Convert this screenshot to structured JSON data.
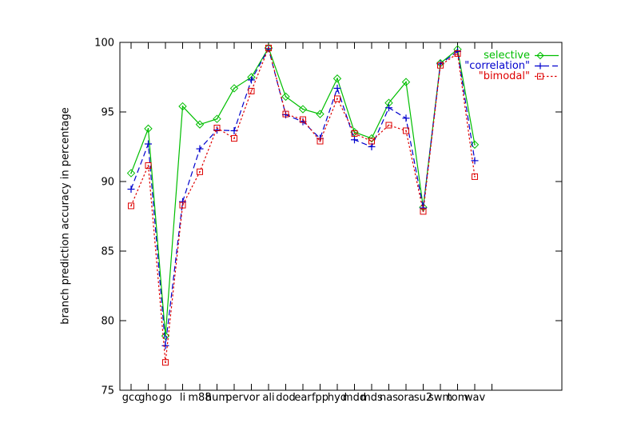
{
  "figure": {
    "background": "#ffffff",
    "frame_color": "#000000",
    "text_color": "#000000"
  },
  "y_axis": {
    "label": "branch prediction accuracy in percentage"
  },
  "chart_data": {
    "type": "line",
    "title": "",
    "xlabel": "",
    "ylabel": "branch prediction accuracy in percentage",
    "ylim": [
      75,
      100
    ],
    "yticks": [
      75,
      80,
      85,
      90,
      95,
      100
    ],
    "grid": false,
    "legend_position": "top-right-inside",
    "unlabeled_extra_xticks": 1,
    "categories": [
      "gcc",
      "gho",
      "go",
      "li",
      "m88",
      "hum",
      "per",
      "vor",
      "ali",
      "dod",
      "ear",
      "fpp",
      "hyd",
      "mdd",
      "mds",
      "nas",
      "ora",
      "su2",
      "swm",
      "tom",
      "wav"
    ],
    "series": [
      {
        "name": "selective",
        "legend_label": "selective",
        "color": "#00be00",
        "marker": "diamond",
        "dash": "solid",
        "values": [
          90.6,
          93.8,
          78.9,
          95.4,
          94.1,
          94.5,
          96.7,
          97.5,
          99.6,
          96.1,
          95.2,
          94.85,
          97.4,
          93.55,
          93.1,
          95.65,
          97.15,
          88.15,
          98.5,
          99.5,
          92.65
        ]
      },
      {
        "name": "correlation",
        "legend_label": "\"correlation\"",
        "color": "#0000cd",
        "marker": "plus",
        "dash": "dashed",
        "values": [
          89.45,
          92.7,
          78.2,
          88.55,
          92.35,
          93.7,
          93.65,
          97.3,
          99.55,
          94.8,
          94.3,
          93.1,
          96.7,
          93.0,
          92.5,
          95.3,
          94.55,
          88.1,
          98.45,
          99.35,
          91.5
        ]
      },
      {
        "name": "bimodal",
        "legend_label": "\"bimodal\"",
        "color": "#de0000",
        "marker": "square",
        "dash": "dotted",
        "values": [
          88.25,
          91.15,
          77.0,
          88.3,
          90.7,
          93.85,
          93.1,
          96.5,
          99.6,
          94.85,
          94.45,
          92.9,
          95.95,
          93.45,
          92.9,
          94.05,
          93.65,
          87.85,
          98.35,
          99.2,
          90.35
        ]
      }
    ]
  }
}
